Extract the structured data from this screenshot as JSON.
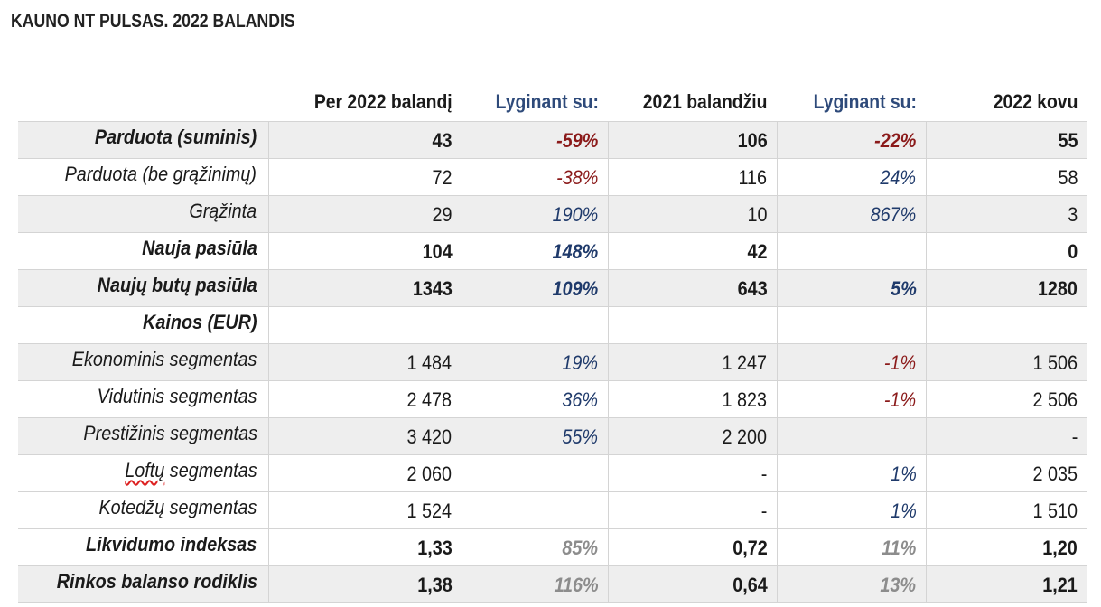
{
  "title": "KAUNO NT PULSAS. 2022 BALANDIS",
  "headers": [
    "",
    "Per 2022 balandį",
    "Lyginant su:",
    "2021 balandžiu",
    "Lyginant su:",
    "2022 kovu"
  ],
  "rows": [
    {
      "label": "Parduota (suminis)",
      "v1": "43",
      "p1": "-59%",
      "v2": "106",
      "p2": "-22%",
      "v3": "55"
    },
    {
      "label": "Parduota (be grąžinimų)",
      "v1": "72",
      "p1": "-38%",
      "v2": "116",
      "p2": "24%",
      "v3": "58"
    },
    {
      "label": "Grąžinta",
      "v1": "29",
      "p1": "190%",
      "v2": "10",
      "p2": "867%",
      "v3": "3"
    },
    {
      "label": "Nauja pasiūla",
      "v1": "104",
      "p1": "148%",
      "v2": "42",
      "p2": "",
      "v3": "0"
    },
    {
      "label": "Naujų butų pasiūla",
      "v1": "1343",
      "p1": "109%",
      "v2": "643",
      "p2": "5%",
      "v3": "1280"
    },
    {
      "label": "Kainos (EUR)",
      "v1": "",
      "p1": "",
      "v2": "",
      "p2": "",
      "v3": ""
    },
    {
      "label": "Ekonominis segmentas",
      "v1": "1 484",
      "p1": "19%",
      "v2": "1 247",
      "p2": "-1%",
      "v3": "1 506"
    },
    {
      "label": "Vidutinis segmentas",
      "v1": "2 478",
      "p1": "36%",
      "v2": "1 823",
      "p2": "-1%",
      "v3": "2 506"
    },
    {
      "label": "Prestižinis segmentas",
      "v1": "3 420",
      "p1": "55%",
      "v2": "2 200",
      "p2": "",
      "v3": "-"
    },
    {
      "label_word": "Loftų",
      "label_rest": " segmentas",
      "v1": "2 060",
      "p1": "",
      "v2": "-",
      "p2": "1%",
      "v3": "2 035"
    },
    {
      "label": "Kotedžų segmentas",
      "v1": "1 524",
      "p1": "",
      "v2": "-",
      "p2": "1%",
      "v3": "1 510"
    },
    {
      "label": "Likvidumo indeksas",
      "v1": "1,33",
      "p1": "85%",
      "v2": "0,72",
      "p2": "11%",
      "v3": "1,20"
    },
    {
      "label": "Rinkos balanso rodiklis",
      "v1": "1,38",
      "p1": "116%",
      "v2": "0,64",
      "p2": "13%",
      "v3": "1,21"
    }
  ],
  "colors": {
    "negative": "#8b1a1a",
    "positive": "#1f3a6b",
    "neutral": "#8c8c8c",
    "header_blue": "#2e4a7a",
    "shade": "#eeeeee"
  }
}
